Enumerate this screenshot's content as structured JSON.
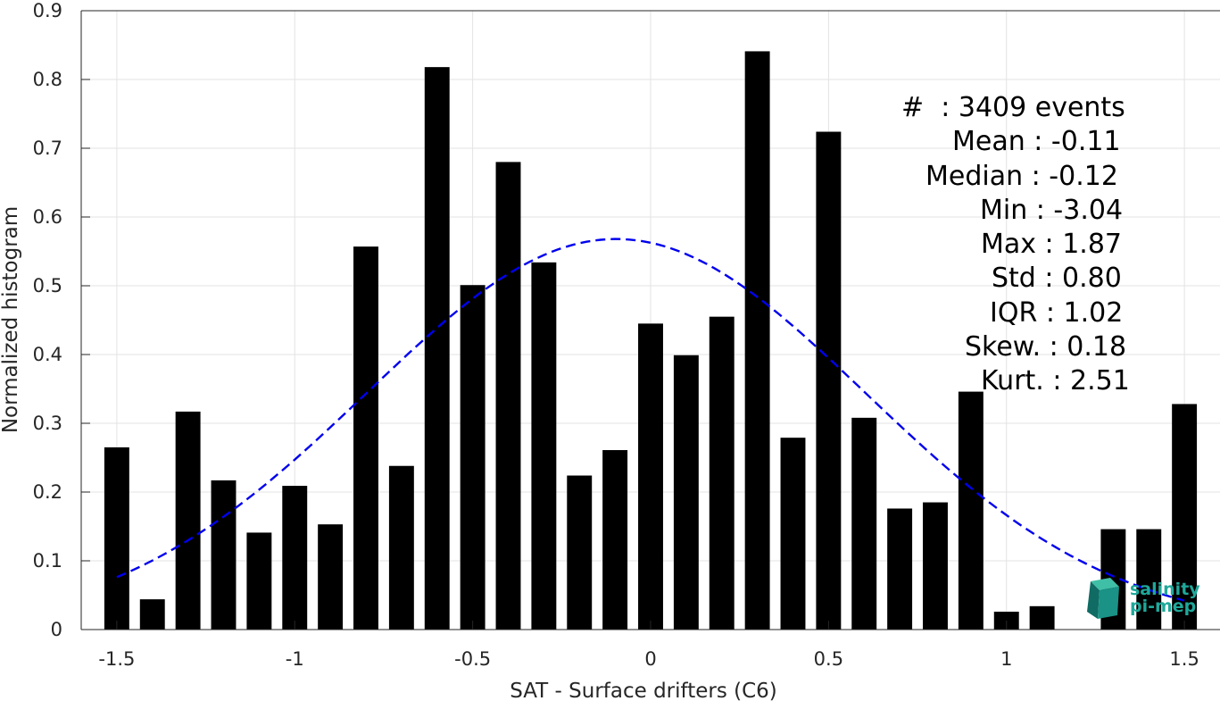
{
  "chart_data": {
    "type": "bar",
    "xlabel": "SAT - Surface drifters (C6)",
    "ylabel": "Normalized histogram",
    "xlim": [
      -1.6,
      1.6
    ],
    "ylim": [
      0,
      0.9
    ],
    "xticks": [
      -1.5,
      -1,
      -0.5,
      0,
      0.5,
      1,
      1.5
    ],
    "xtick_labels": [
      "-1.5",
      "-1",
      "-0.5",
      "0",
      "0.5",
      "1",
      "1.5"
    ],
    "yticks": [
      0,
      0.1,
      0.2,
      0.3,
      0.4,
      0.5,
      0.6,
      0.7,
      0.8,
      0.9
    ],
    "ytick_labels": [
      "0",
      "0.1",
      "0.2",
      "0.3",
      "0.4",
      "0.5",
      "0.6",
      "0.7",
      "0.8",
      "0.9"
    ],
    "grid": true,
    "bar_color": "#000000",
    "bar_width": 0.07,
    "x": [
      -1.5,
      -1.4,
      -1.3,
      -1.2,
      -1.1,
      -1.0,
      -0.9,
      -0.8,
      -0.7,
      -0.6,
      -0.5,
      -0.4,
      -0.3,
      -0.2,
      -0.1,
      0.0,
      0.1,
      0.2,
      0.3,
      0.4,
      0.5,
      0.6,
      0.7,
      0.8,
      0.9,
      1.0,
      1.1,
      1.2,
      1.3,
      1.4,
      1.5
    ],
    "values": [
      0.265,
      0.044,
      0.317,
      0.217,
      0.141,
      0.209,
      0.153,
      0.557,
      0.238,
      0.818,
      0.501,
      0.68,
      0.534,
      0.224,
      0.261,
      0.445,
      0.399,
      0.455,
      0.841,
      0.279,
      0.724,
      0.308,
      0.176,
      0.185,
      0.346,
      0.026,
      0.034,
      0.0,
      0.146,
      0.146,
      0.328
    ],
    "fit_curve": {
      "style": "dashed",
      "color": "#0000ee",
      "mean": -0.097,
      "std": 0.7,
      "peak": 0.568,
      "x_range": [
        -1.5,
        1.5
      ]
    }
  },
  "stats": [
    "#  : 3409 events",
    "Mean : -0.11",
    "Median : -0.12",
    "Min : -3.04",
    "Max : 1.87",
    "Std : 0.80",
    "IQR : 1.02",
    "Skew. : 0.18",
    "Kurt. : 2.51"
  ],
  "logo": {
    "line1": "salinity",
    "line2": "pi-mep",
    "color": "#1fa89a"
  }
}
